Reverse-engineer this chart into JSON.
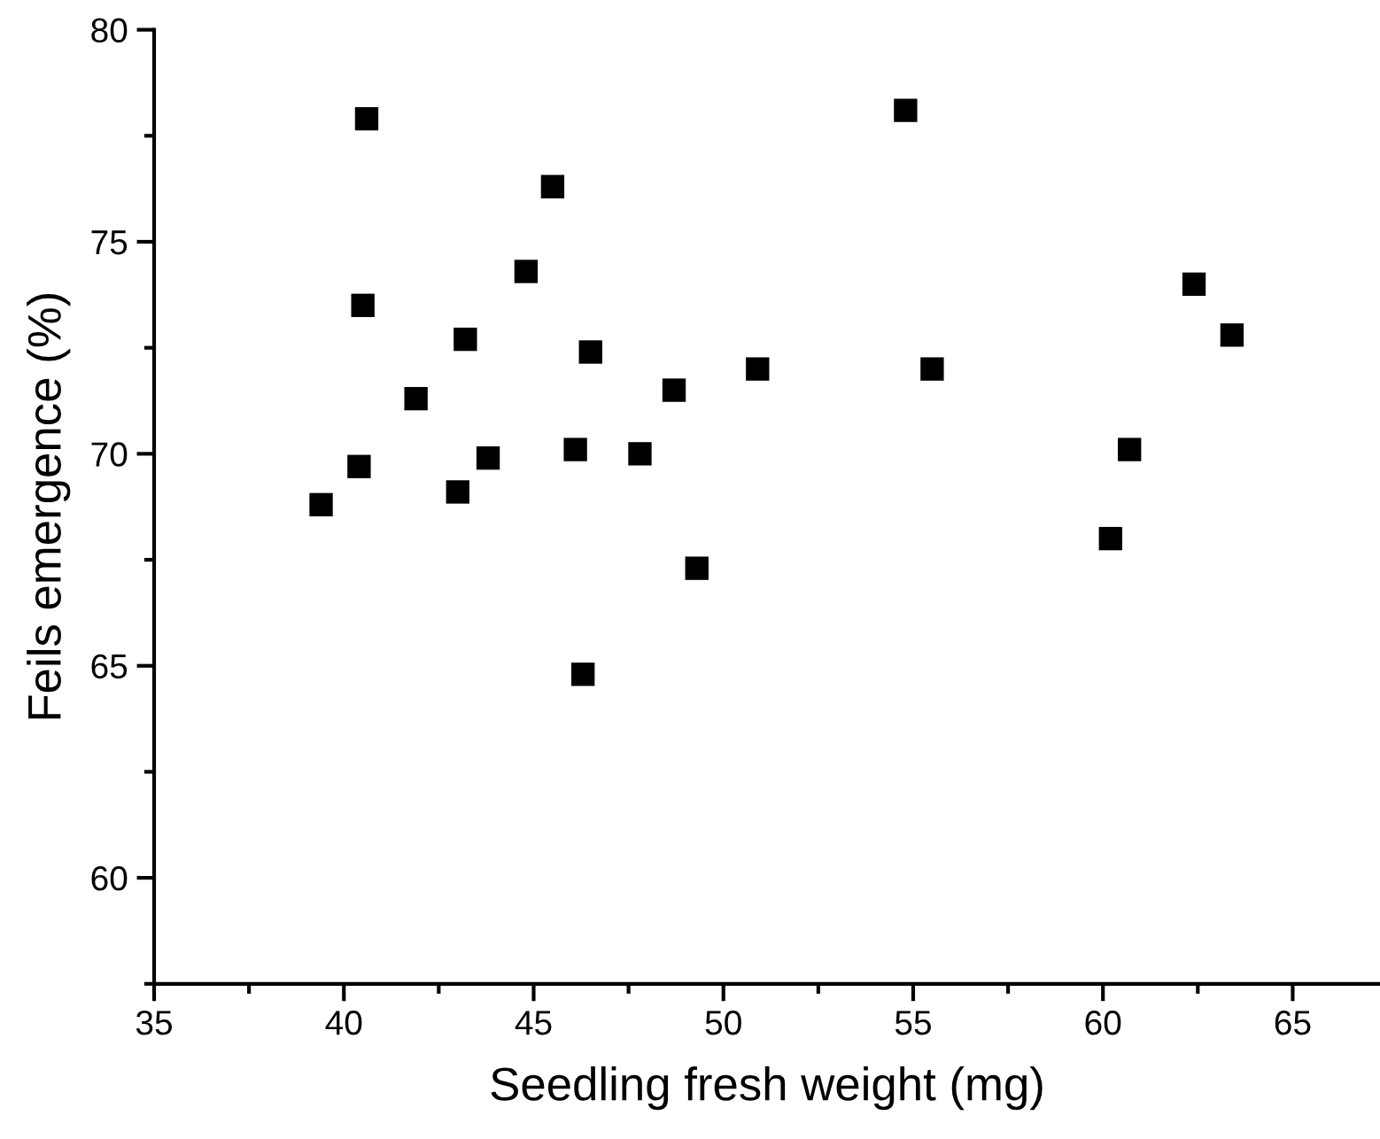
{
  "chart_data": {
    "type": "scatter",
    "xlabel": "Seedling fresh weight (mg)",
    "ylabel": "Feils emergence (%)",
    "x": [
      40.6,
      45.5,
      44.8,
      40.5,
      43.2,
      46.5,
      50.9,
      48.7,
      41.9,
      43.8,
      46.1,
      47.8,
      40.4,
      43.0,
      39.4,
      49.3,
      46.3,
      54.8,
      62.4,
      63.4,
      55.5,
      60.7,
      60.2
    ],
    "values": [
      77.9,
      76.3,
      74.3,
      73.5,
      72.7,
      72.4,
      72.0,
      71.5,
      71.3,
      69.9,
      70.1,
      70.0,
      69.7,
      69.1,
      68.8,
      67.3,
      64.8,
      78.1,
      74.0,
      72.8,
      72.0,
      70.1,
      68.0
    ],
    "color": "#000000",
    "marker": "square",
    "xlim": [
      35,
      67.3
    ],
    "ylim": [
      57.5,
      80
    ],
    "xticks": [
      35,
      40,
      45,
      50,
      55,
      60,
      65
    ],
    "yticks": [
      60,
      65,
      70,
      75,
      80
    ],
    "grid": false,
    "legend": false
  }
}
